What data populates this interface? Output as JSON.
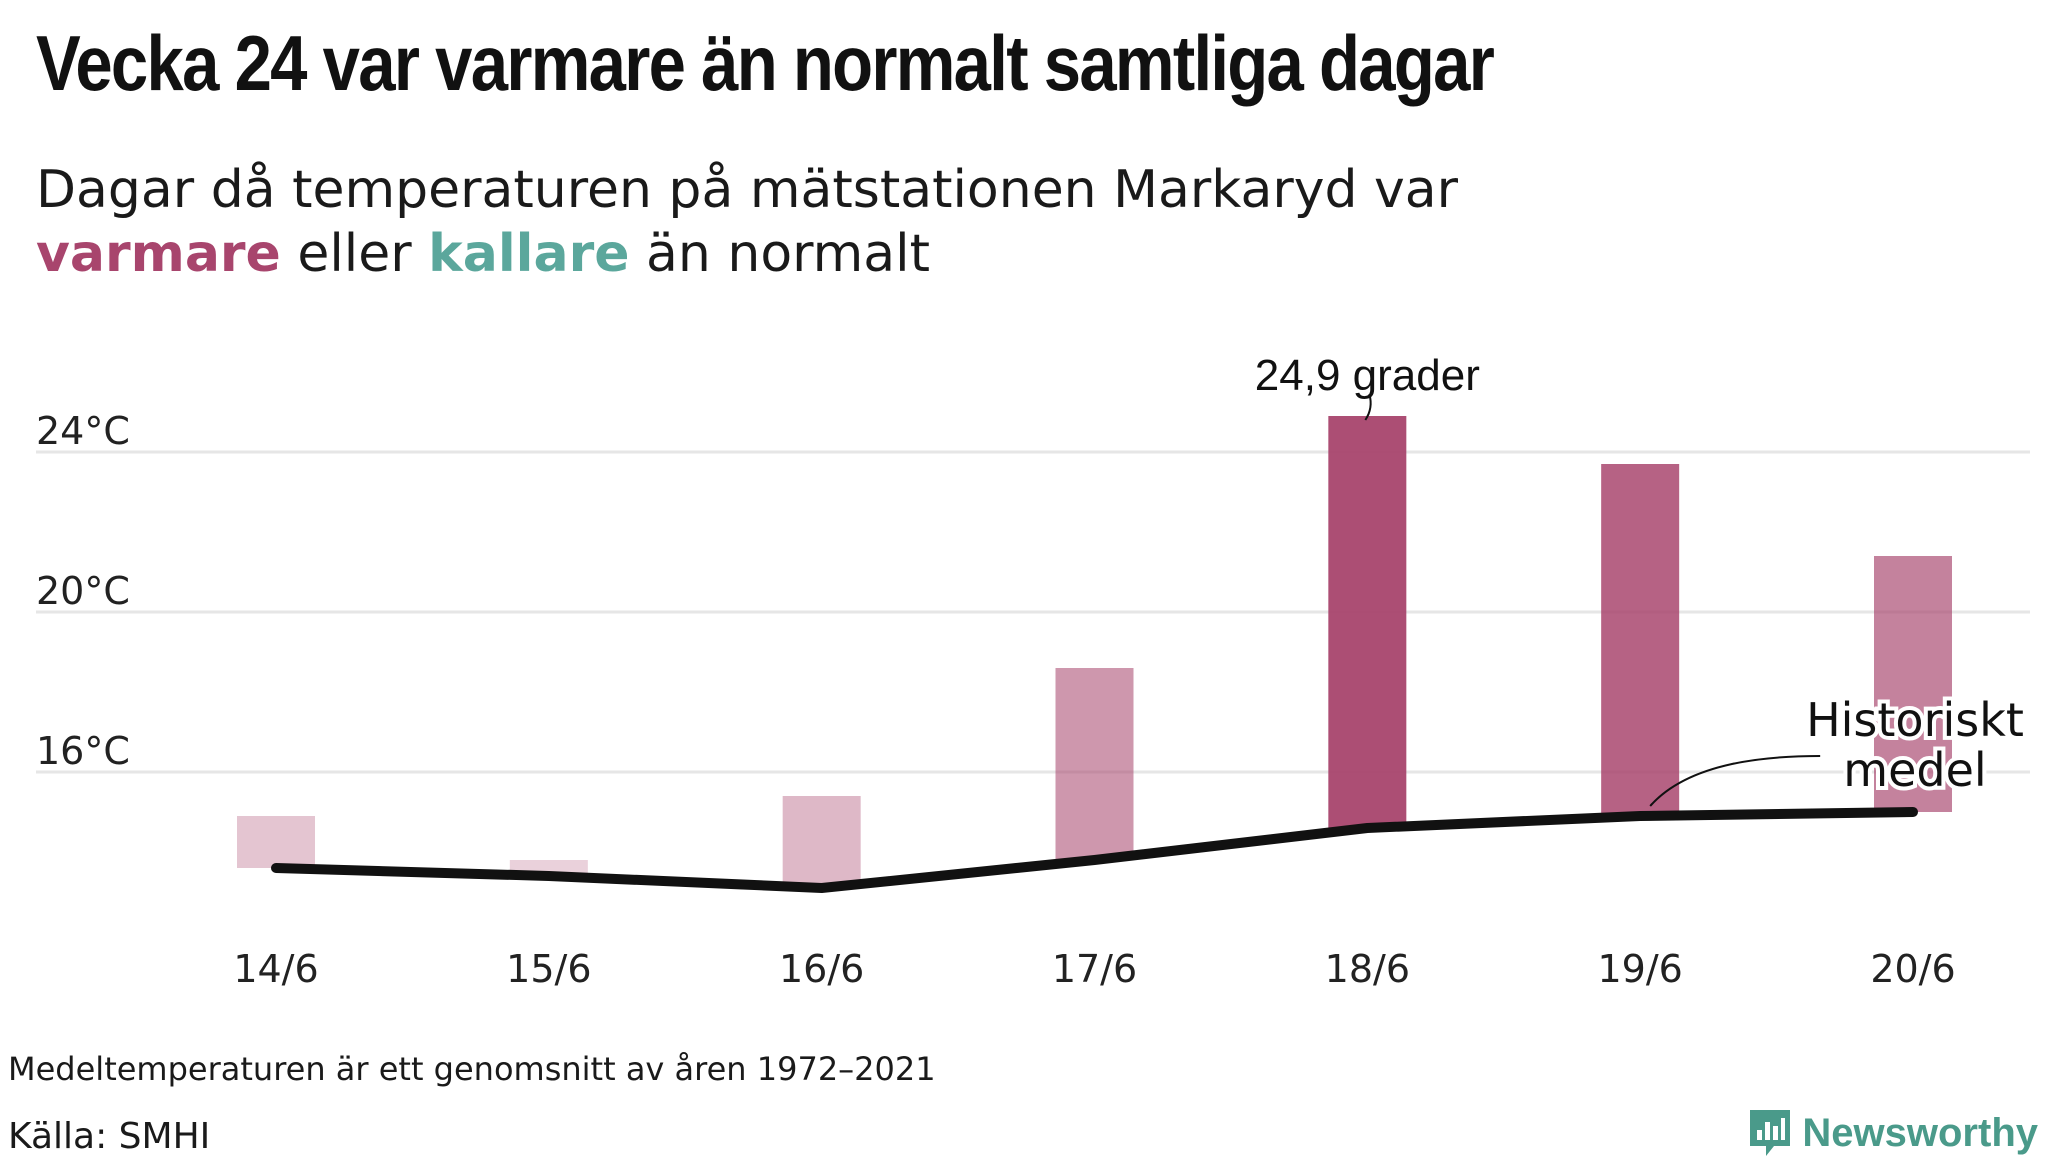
{
  "header": {
    "title": "Vecka 24 var varmare än normalt samtliga dagar",
    "subtitle_line1": "Dagar då temperaturen på mätstationen Markaryd var",
    "subtitle_warm": "varmare",
    "subtitle_mid": " eller ",
    "subtitle_cold": "kallare",
    "subtitle_end": " än normalt"
  },
  "footer": {
    "note": "Medeltemperaturen är ett genomsnitt av åren 1972–2021",
    "source": "Källa: SMHI",
    "brand": "Newsworthy"
  },
  "colors": {
    "warm": "#a8456d",
    "cold": "#5ba79c",
    "mean_line": "#111111",
    "grid": "#e6e6e6",
    "brand": "#4a9a8a"
  },
  "chart_data": {
    "type": "bar",
    "categories": [
      "14/6",
      "15/6",
      "16/6",
      "17/6",
      "18/6",
      "19/6",
      "20/6"
    ],
    "series": [
      {
        "values": [
          14.9,
          13.8,
          15.4,
          18.6,
          24.9,
          23.7,
          21.4
        ]
      },
      {
        "name": "Historiskt medel",
        "values": [
          13.6,
          13.4,
          13.1,
          13.8,
          14.6,
          14.9,
          15.0
        ]
      }
    ],
    "yticks": [
      16,
      20,
      24
    ],
    "ytick_labels": [
      "16°C",
      "20°C",
      "24°C"
    ],
    "ylim": [
      12.3,
      26.3
    ],
    "grid": true,
    "annotations": {
      "max_label": "24,9 grader",
      "mean_label_line1": "Historiskt",
      "mean_label_line2": "medel"
    }
  }
}
